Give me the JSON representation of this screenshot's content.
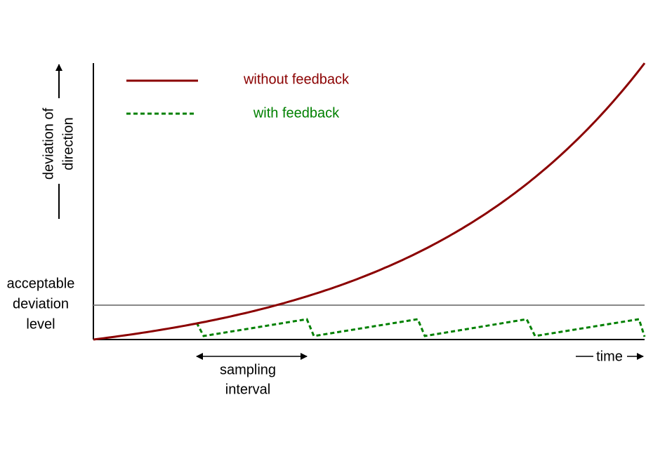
{
  "legend": {
    "without_feedback": "without feedback",
    "with_feedback": "with feedback"
  },
  "y_axis_label": [
    "deviation of",
    "direction"
  ],
  "threshold_label": [
    "acceptable",
    "deviation",
    "level"
  ],
  "interval_label": [
    "sampling",
    "interval"
  ],
  "x_axis_label": "time"
}
